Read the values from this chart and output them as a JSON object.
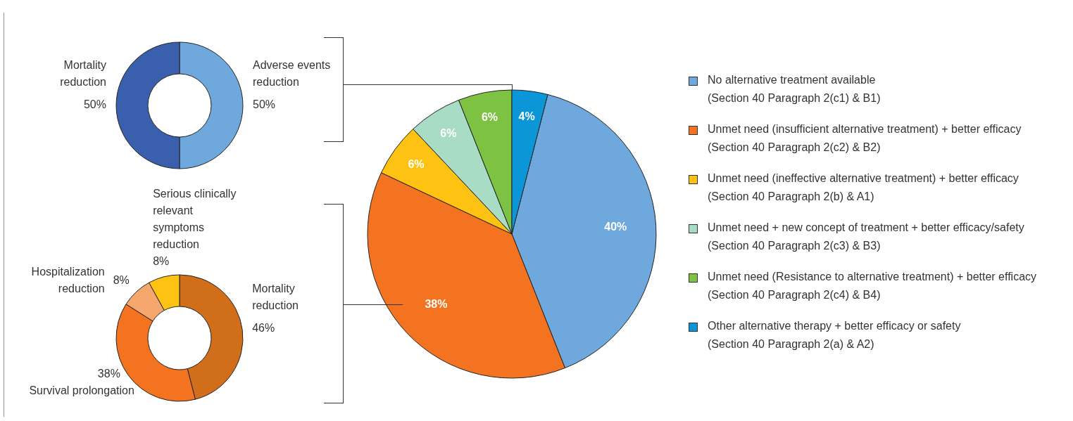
{
  "chart_data": [
    {
      "type": "donut",
      "categories": [
        "Adverse events reduction",
        "Mortality reduction"
      ],
      "values": [
        50,
        50
      ],
      "colors": [
        "#6fa8dc",
        "#3a60ad"
      ],
      "value_labels": [
        "50%",
        "50%"
      ],
      "legend": false
    },
    {
      "type": "donut",
      "categories": [
        "Mortality reduction",
        "Survival prolongation",
        "Hospitalization reduction",
        "Serious clinically relevant symptoms reduction"
      ],
      "values": [
        46,
        38,
        8,
        8
      ],
      "colors": [
        "#d06e1a",
        "#f37321",
        "#f6a76d",
        "#fdc212"
      ],
      "value_labels": [
        "46%",
        "38%",
        "8%",
        "8%"
      ],
      "legend": false
    },
    {
      "type": "pie",
      "categories": [
        "No alternative treatment available\n(Section 40 Paragraph 2(c1) & B1)",
        "Unmet need (insufficient alternative treatment) + better efficacy\n(Section 40 Paragraph 2(c2) & B2)",
        "Unmet need (ineffective alternative treatment) + better efficacy\n(Section 40 Paragraph 2(b) & A1)",
        "Unmet need + new concept of treatment + better efficacy/safety\n(Section 40 Paragraph 2(c3) & B3)",
        "Unmet need (Resistance to alternative treatment) + better efficacy\n(Section 40 Paragraph 2(c4) & B4)",
        "Other alternative therapy + better efficacy or safety\n(Section 40 Paragraph 2(a) & A2)"
      ],
      "values": [
        40,
        38,
        6,
        6,
        6,
        4
      ],
      "colors": [
        "#6fa8dc",
        "#f37321",
        "#fdc212",
        "#a8dcc4",
        "#7dc242",
        "#0b96d8"
      ],
      "value_labels": [
        "40%",
        "38%",
        "6%",
        "6%",
        "6%",
        "4%"
      ],
      "legend": "right"
    }
  ]
}
